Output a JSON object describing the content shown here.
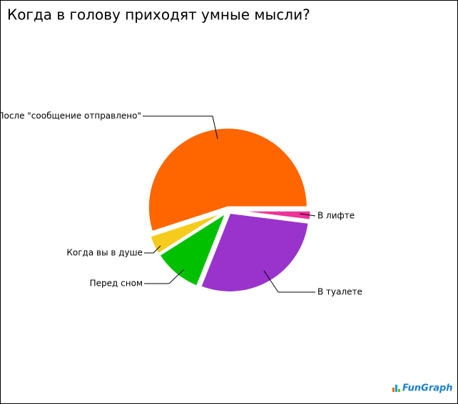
{
  "chart_data": {
    "type": "pie",
    "title": "Когда в голову приходят умные мысли?",
    "categories": [
      "После \"сообщение отправлено\"",
      "Когда вы в душе",
      "Перед сном",
      "В туалете",
      "В лифте"
    ],
    "values": [
      55,
      4,
      10,
      29,
      2
    ],
    "colors": [
      "#ff6600",
      "#f5cc1c",
      "#00c000",
      "#9933cc",
      "#ee3399"
    ],
    "watermark": "FunGraph"
  }
}
